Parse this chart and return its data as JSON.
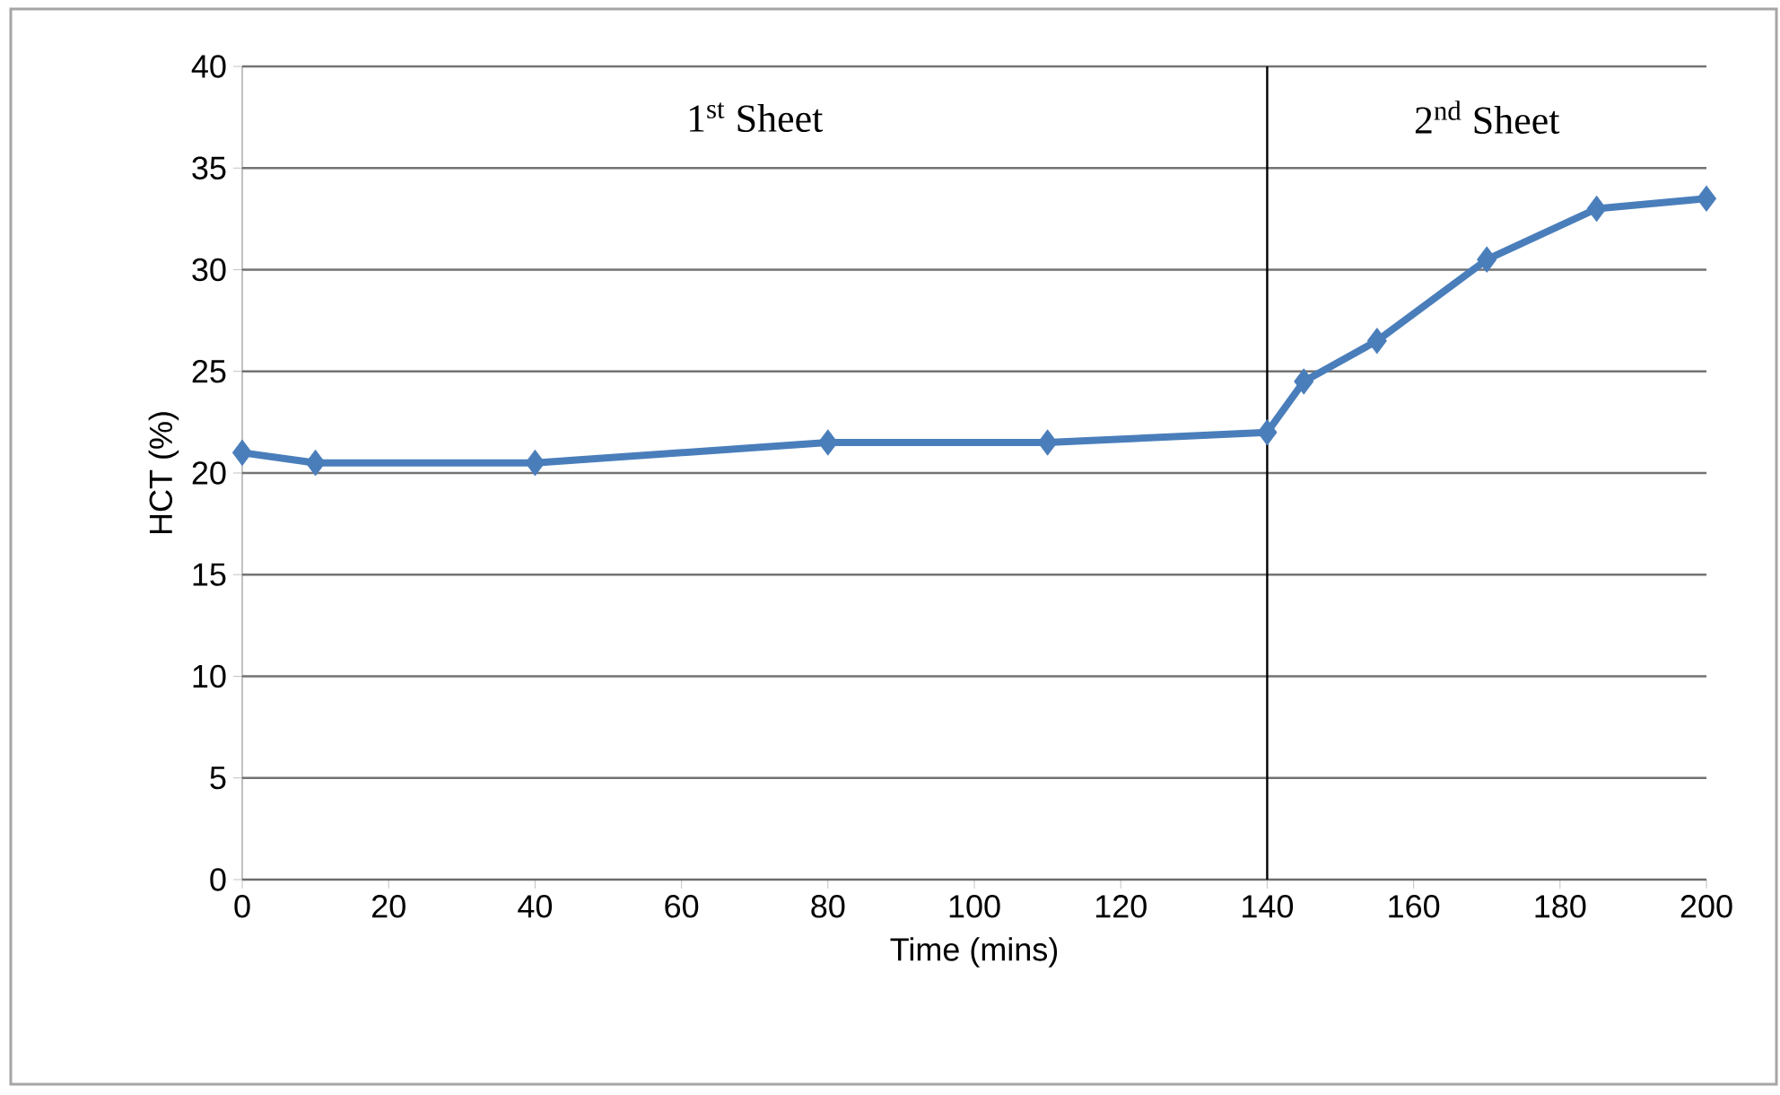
{
  "chart_data": {
    "type": "line",
    "xlabel": "Time (mins)",
    "ylabel": "HCT (%)",
    "x": [
      0,
      10,
      40,
      80,
      110,
      140,
      145,
      155,
      170,
      185,
      200
    ],
    "series": [
      {
        "color": "#4a7ebb",
        "values": [
          21,
          20.5,
          20.5,
          21.5,
          21.5,
          22,
          24.5,
          26.5,
          30.5,
          33,
          33.5
        ]
      }
    ],
    "xlim": [
      0,
      200
    ],
    "ylim": [
      0,
      40
    ],
    "xticks": [
      0,
      20,
      40,
      60,
      80,
      100,
      120,
      140,
      160,
      180,
      200
    ],
    "yticks": [
      0,
      5,
      10,
      15,
      20,
      25,
      30,
      35,
      40
    ],
    "grid": "y",
    "marker": "diamond",
    "line_style": "solid",
    "ref_lines": [
      {
        "axis": "x",
        "value": 140,
        "color": "#000000"
      }
    ],
    "annotations": [
      "1$^{st}$ Sheet",
      "2$^{nd}$ Sheet"
    ]
  }
}
